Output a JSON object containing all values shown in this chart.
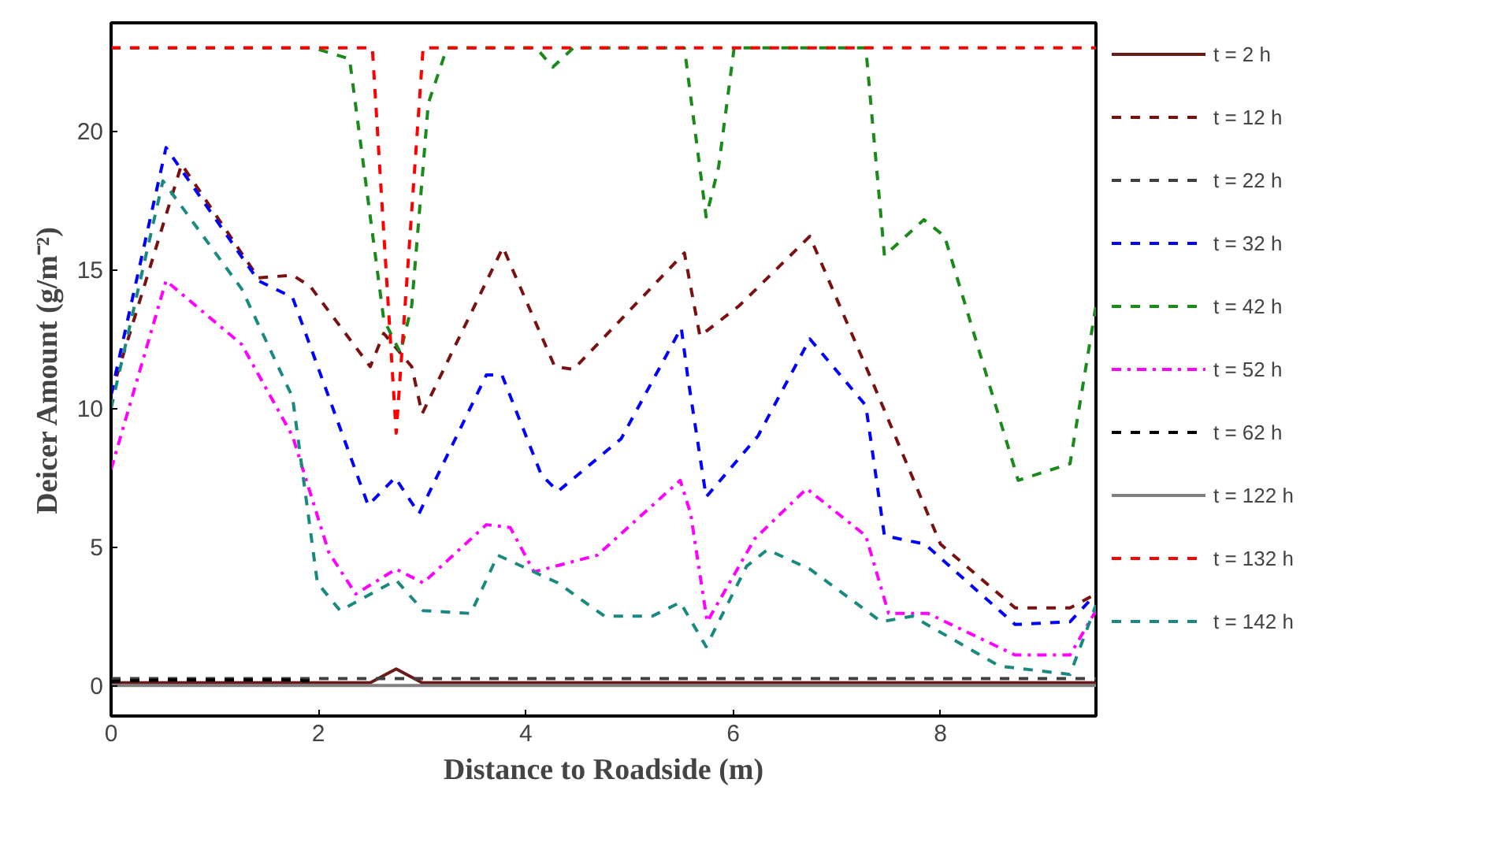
{
  "chart_data": {
    "type": "line",
    "xlabel": "Distance to Roadside (m)",
    "ylabel": "Deicer Amount (g/m⁻²)",
    "xlim": [
      0,
      9.5
    ],
    "ylim": [
      -1.1,
      23.9
    ],
    "xticks": [
      0,
      2,
      4,
      6,
      8
    ],
    "yticks": [
      0,
      5,
      10,
      15,
      20
    ],
    "grid": false,
    "legend": "right",
    "marker": "none",
    "series": [
      {
        "name": "t = 2 h",
        "color": "#6b1a1a",
        "line_style": "solid",
        "x": [
          0,
          2.5,
          2.75,
          3.0,
          9.5
        ],
        "values": [
          0.1,
          0.1,
          0.6,
          0.1,
          0.1
        ]
      },
      {
        "name": "t = 12 h",
        "color": "#7a1010",
        "line_style": "dashed",
        "x": [
          0,
          0.68,
          1.42,
          1.75,
          1.92,
          2.5,
          2.63,
          2.9,
          3.0,
          3.78,
          4.28,
          4.46,
          5.53,
          5.68,
          6.06,
          6.74,
          7.35,
          8.0,
          8.72,
          9.25,
          9.5
        ],
        "values": [
          10.5,
          18.8,
          14.7,
          14.8,
          14.4,
          11.5,
          12.7,
          11.5,
          9.8,
          15.8,
          11.5,
          11.4,
          15.6,
          12.6,
          13.7,
          16.2,
          10.9,
          5.1,
          2.8,
          2.8,
          3.3
        ]
      },
      {
        "name": "t = 22 h",
        "color": "#404040",
        "line_style": "dashed",
        "x": [
          0,
          9.5
        ],
        "values": [
          0.25,
          0.25
        ]
      },
      {
        "name": "t = 32 h",
        "color": "#0000ff",
        "line_style": "dashed",
        "x": [
          0,
          0.53,
          1.42,
          1.75,
          2.48,
          2.74,
          2.97,
          3.62,
          3.77,
          4.15,
          4.31,
          4.92,
          5.5,
          5.56,
          5.74,
          6.24,
          6.74,
          7.28,
          7.46,
          7.85,
          8.72,
          9.25,
          9.5
        ],
        "values": [
          10.5,
          19.4,
          14.6,
          14.0,
          6.5,
          7.5,
          6.2,
          11.2,
          11.2,
          7.6,
          7.0,
          8.9,
          12.9,
          11.2,
          6.8,
          9.0,
          12.5,
          10.1,
          5.4,
          5.1,
          2.2,
          2.3,
          3.3
        ]
      },
      {
        "name": "t = 42 h",
        "color": "#1a8a1a",
        "line_style": "dashed",
        "x": [
          0,
          1.95,
          2.3,
          2.63,
          2.79,
          2.9,
          3.06,
          3.24,
          4.1,
          4.26,
          4.46,
          5.53,
          5.74,
          5.86,
          6.01,
          7.28,
          7.46,
          7.84,
          8.04,
          8.75,
          9.25,
          9.5
        ],
        "values": [
          23,
          23,
          22.6,
          13.2,
          12,
          13.7,
          21,
          23,
          23,
          22.3,
          23,
          23,
          16.9,
          18.7,
          23,
          23,
          15.5,
          16.8,
          16.2,
          7.4,
          8.0,
          13.7
        ]
      },
      {
        "name": "t = 52 h",
        "color": "#ff00ff",
        "line_style": "dashdot",
        "x": [
          0,
          0.53,
          1.26,
          1.75,
          2.1,
          2.36,
          2.75,
          3.01,
          3.62,
          3.85,
          4.08,
          4.69,
          5.49,
          5.59,
          5.75,
          6.21,
          6.71,
          7.28,
          7.5,
          7.88,
          8.72,
          9.25,
          9.5
        ],
        "values": [
          7.8,
          14.6,
          12.3,
          9.0,
          4.8,
          3.3,
          4.2,
          3.7,
          5.8,
          5.7,
          4.1,
          4.7,
          7.4,
          6.2,
          2.3,
          5.3,
          7.1,
          5.4,
          2.6,
          2.6,
          1.1,
          1.1,
          2.7
        ]
      },
      {
        "name": "t = 62 h",
        "color": "#000000",
        "line_style": "dashed",
        "x": [
          0,
          0.5,
          1.7,
          2.0
        ],
        "values": [
          0.15,
          0.2,
          0.2,
          0.15
        ]
      },
      {
        "name": "t = 122 h",
        "color": "#808080",
        "line_style": "solid",
        "x": [
          0,
          9.5
        ],
        "values": [
          0,
          0
        ]
      },
      {
        "name": "t = 132 h",
        "color": "#ff0000",
        "line_style": "dashed",
        "x": [
          0,
          2.52,
          2.75,
          3.01,
          9.5
        ],
        "values": [
          23,
          23,
          9.1,
          23,
          23
        ]
      },
      {
        "name": "t = 142 h",
        "color": "#1a8a80",
        "line_style": "dashed",
        "x": [
          0,
          0.5,
          1.26,
          1.75,
          1.99,
          2.21,
          2.75,
          3.01,
          3.47,
          3.73,
          4.31,
          4.76,
          5.22,
          5.49,
          5.74,
          6.13,
          6.33,
          6.74,
          7.43,
          7.73,
          8.57,
          9.25,
          9.5
        ],
        "values": [
          10,
          18.2,
          14.3,
          10.4,
          3.7,
          2.7,
          3.8,
          2.7,
          2.6,
          4.7,
          3.7,
          2.5,
          2.5,
          3.0,
          1.4,
          4.3,
          4.9,
          4.2,
          2.3,
          2.5,
          0.7,
          0.4,
          2.9
        ]
      }
    ]
  }
}
